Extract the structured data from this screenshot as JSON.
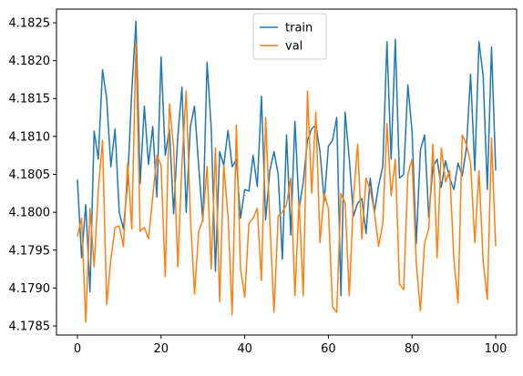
{
  "chart_data": {
    "type": "line",
    "title": "",
    "xlabel": "",
    "ylabel": "",
    "xlim": [
      -5,
      105
    ],
    "ylim": [
      4.17838,
      4.18268
    ],
    "xticks": [
      0,
      20,
      40,
      60,
      80,
      100
    ],
    "yticks": [
      4.1785,
      4.179,
      4.1795,
      4.18,
      4.1805,
      4.181,
      4.1815,
      4.182,
      4.1825
    ],
    "ytick_labels": [
      "4.1785",
      "4.1790",
      "4.1795",
      "4.1800",
      "4.1805",
      "4.1810",
      "4.1815",
      "4.1820",
      "4.1825"
    ],
    "grid": false,
    "legend": {
      "placement": "top-center"
    },
    "series": [
      {
        "name": "train",
        "color": "#1f77b4",
        "values": [
          4.18043,
          4.1794,
          4.1801,
          4.17895,
          4.18107,
          4.1807,
          4.18188,
          4.1815,
          4.1806,
          4.1811,
          4.18,
          4.17978,
          4.1804,
          4.1816,
          4.18252,
          4.18038,
          4.1814,
          4.18063,
          4.18113,
          4.1802,
          4.18205,
          4.18075,
          4.1811,
          4.17998,
          4.181,
          4.18165,
          4.18,
          4.18113,
          4.1814,
          4.1806,
          4.17988,
          4.18198,
          4.1811,
          4.17922,
          4.1808,
          4.18062,
          4.18108,
          4.1806,
          4.1807,
          4.17992,
          4.1803,
          4.18028,
          4.18075,
          4.18034,
          4.18153,
          4.1799,
          4.18055,
          4.1808,
          4.1805,
          4.17938,
          4.18102,
          4.1797,
          4.1812,
          4.18005,
          4.1804,
          4.18095,
          4.1811,
          4.18115,
          4.1808,
          4.18014,
          4.18087,
          4.18095,
          4.18125,
          4.1789,
          4.18132,
          4.1807,
          4.17995,
          4.18012,
          4.18018,
          4.17972,
          4.18045,
          4.18,
          4.18035,
          4.1806,
          4.18225,
          4.1807,
          4.18228,
          4.18045,
          4.1805,
          4.18168,
          4.18107,
          4.17958,
          4.18082,
          4.18102,
          4.17993,
          4.1806,
          4.1807,
          4.18033,
          4.18068,
          4.18045,
          4.1803,
          4.18065,
          4.18048,
          4.18085,
          4.18182,
          4.18055,
          4.18225,
          4.1818,
          4.1803,
          4.18218,
          4.18055
        ]
      },
      {
        "name": "val",
        "color": "#ff7f0e",
        "values": [
          4.17968,
          4.17992,
          4.17855,
          4.18005,
          4.17928,
          4.1803,
          4.18095,
          4.17878,
          4.17938,
          4.1798,
          4.17982,
          4.17955,
          4.18065,
          4.17978,
          4.18222,
          4.17975,
          4.1798,
          4.17965,
          4.1802,
          4.18075,
          4.18062,
          4.17915,
          4.18143,
          4.18085,
          4.17928,
          4.18065,
          4.1816,
          4.17995,
          4.17892,
          4.17975,
          4.1799,
          4.1806,
          4.17925,
          4.18085,
          4.17882,
          4.18062,
          4.17995,
          4.17865,
          4.18115,
          4.17925,
          4.17888,
          4.17985,
          4.17992,
          4.18005,
          4.1791,
          4.18125,
          4.17988,
          4.17868,
          4.17995,
          4.18,
          4.1801,
          4.18045,
          4.1789,
          4.18015,
          4.1789,
          4.1816,
          4.18025,
          4.18132,
          4.1796,
          4.18025,
          4.18005,
          4.17875,
          4.17868,
          4.18025,
          4.18012,
          4.1789,
          4.1802,
          4.1809,
          4.17965,
          4.18045,
          4.1803,
          4.18,
          4.17955,
          4.17985,
          4.18117,
          4.18022,
          4.1807,
          4.17905,
          4.17898,
          4.1805,
          4.1807,
          4.17933,
          4.1787,
          4.1796,
          4.17978,
          4.1809,
          4.1794,
          4.18085,
          4.1804,
          4.18055,
          4.17938,
          4.1788,
          4.18102,
          4.1809,
          4.18065,
          4.1796,
          4.18055,
          4.17935,
          4.17885,
          4.18098,
          4.17955
        ]
      }
    ]
  }
}
